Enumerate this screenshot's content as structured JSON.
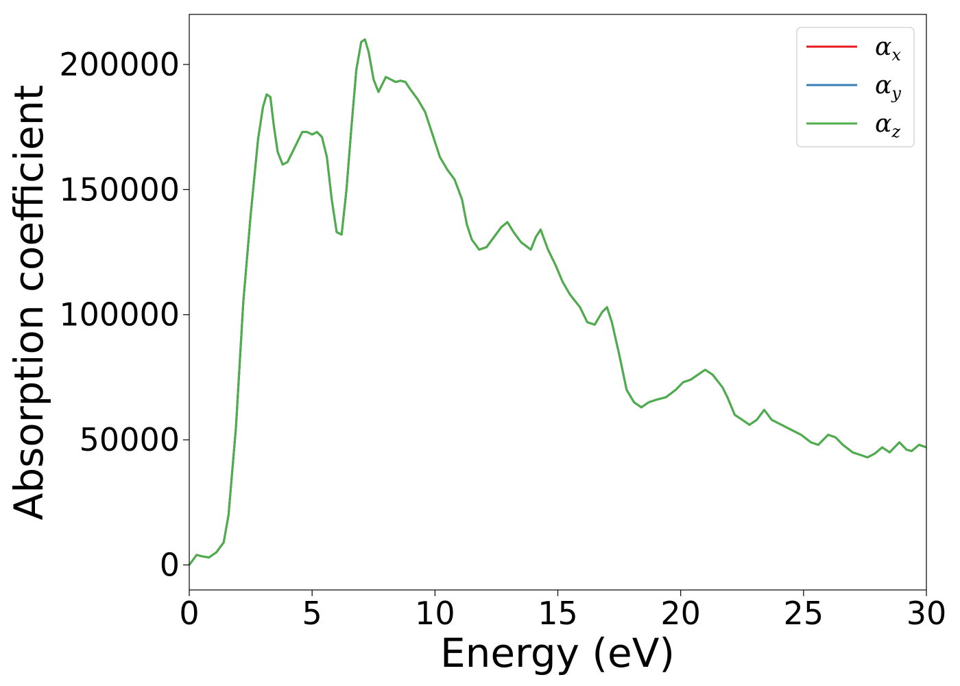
{
  "chart_data": {
    "type": "line",
    "xlabel": "Energy (eV)",
    "ylabel": "Absorption coefficient",
    "xlim": [
      0,
      30
    ],
    "ylim": [
      -10000,
      220000
    ],
    "xticks": [
      "0",
      "5",
      "10",
      "15",
      "20",
      "25",
      "30"
    ],
    "yticks": [
      "0",
      "50000",
      "100000",
      "150000",
      "200000"
    ],
    "grid": false,
    "legend_position": "top-right",
    "series_colors": [
      "#e41a1c",
      "#377eb8",
      "#4daf4a"
    ],
    "series": [
      {
        "name": "αx",
        "symbol": "α",
        "sub": "x"
      },
      {
        "name": "αy",
        "symbol": "α",
        "sub": "y"
      },
      {
        "name": "αz",
        "symbol": "α",
        "sub": "z"
      }
    ],
    "x": [
      0,
      0.3,
      0.5,
      0.8,
      1.1,
      1.4,
      1.6,
      1.9,
      2.2,
      2.5,
      2.8,
      3.0,
      3.15,
      3.3,
      3.45,
      3.6,
      3.8,
      4.0,
      4.3,
      4.6,
      4.8,
      5.0,
      5.2,
      5.4,
      5.6,
      5.8,
      6.0,
      6.2,
      6.4,
      6.6,
      6.8,
      7.0,
      7.15,
      7.3,
      7.5,
      7.7,
      7.85,
      8.0,
      8.2,
      8.4,
      8.6,
      8.8,
      9.0,
      9.3,
      9.6,
      9.9,
      10.2,
      10.5,
      10.8,
      11.1,
      11.3,
      11.5,
      11.8,
      12.1,
      12.4,
      12.7,
      12.95,
      13.2,
      13.5,
      13.9,
      14.1,
      14.3,
      14.6,
      14.9,
      15.2,
      15.5,
      15.9,
      16.2,
      16.5,
      16.8,
      17.0,
      17.2,
      17.5,
      17.8,
      18.1,
      18.4,
      18.7,
      19.0,
      19.4,
      19.8,
      20.1,
      20.4,
      20.7,
      21.0,
      21.3,
      21.7,
      21.9,
      22.2,
      22.5,
      22.8,
      23.1,
      23.4,
      23.7,
      24.1,
      24.5,
      24.9,
      25.3,
      25.6,
      26.0,
      26.3,
      26.6,
      27.0,
      27.3,
      27.6,
      27.9,
      28.2,
      28.5,
      28.9,
      29.2,
      29.4,
      29.7,
      30.0
    ],
    "values": [
      0,
      4000,
      3500,
      3000,
      5000,
      9000,
      20000,
      55000,
      105000,
      140000,
      170000,
      183000,
      188000,
      187000,
      175000,
      165000,
      160000,
      161000,
      167000,
      173000,
      173000,
      172000,
      173000,
      171000,
      163000,
      146000,
      133000,
      132000,
      150000,
      175000,
      198000,
      209000,
      210000,
      205000,
      194000,
      189000,
      192000,
      195000,
      194000,
      193000,
      193500,
      193000,
      190000,
      186000,
      181000,
      172000,
      163000,
      158000,
      154000,
      146000,
      136000,
      130000,
      126000,
      127000,
      131000,
      135000,
      137000,
      133000,
      129000,
      126000,
      131000,
      134000,
      126000,
      120000,
      113000,
      108000,
      103000,
      97000,
      96000,
      101000,
      103000,
      97000,
      84000,
      70000,
      65000,
      63000,
      65000,
      66000,
      67000,
      70000,
      73000,
      74000,
      76000,
      78000,
      76000,
      71000,
      67000,
      60000,
      58000,
      56000,
      58000,
      62000,
      58000,
      56000,
      54000,
      52000,
      49000,
      48000,
      52000,
      51000,
      48000,
      45000,
      44000,
      43000,
      44500,
      47000,
      45000,
      49000,
      46000,
      45500,
      48000,
      47000
    ]
  }
}
